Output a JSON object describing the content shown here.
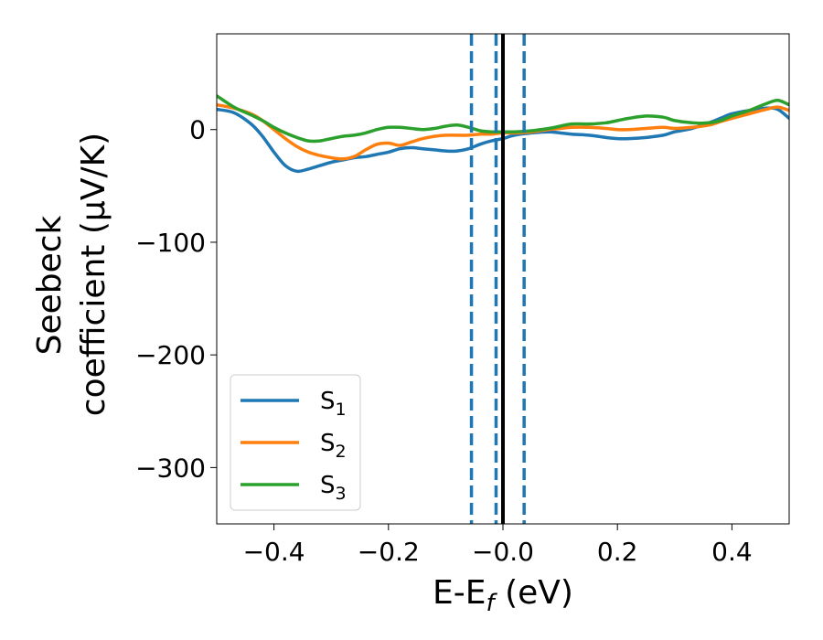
{
  "chart_data": {
    "type": "line",
    "title": "",
    "xlabel": "E-E",
    "xlabel_sub": "f",
    "xlabel_unit": " (eV)",
    "ylabel_line1": "Seebeck",
    "ylabel_line2": "coefficient  (μV/K)",
    "xlim": [
      -0.5,
      0.5
    ],
    "ylim": [
      -350,
      85
    ],
    "xticks": [
      -0.4,
      -0.2,
      0.0,
      0.2,
      0.4
    ],
    "xtick_labels": [
      "−0.4",
      "−0.2",
      "−0.0",
      "0.2",
      "0.4"
    ],
    "yticks": [
      0,
      -100,
      -200,
      -300
    ],
    "ytick_labels": [
      "0",
      "−100",
      "−200",
      "−300"
    ],
    "grid": false,
    "legend_position": "lower-left",
    "series": [
      {
        "name": "S",
        "subscript": "1",
        "color": "#1f77b4",
        "x": [
          -0.5,
          -0.47,
          -0.44,
          -0.42,
          -0.4,
          -0.38,
          -0.36,
          -0.34,
          -0.32,
          -0.3,
          -0.28,
          -0.26,
          -0.24,
          -0.22,
          -0.2,
          -0.18,
          -0.16,
          -0.14,
          -0.12,
          -0.1,
          -0.08,
          -0.06,
          -0.04,
          -0.02,
          0.0,
          0.02,
          0.05,
          0.08,
          0.1,
          0.12,
          0.15,
          0.18,
          0.2,
          0.22,
          0.25,
          0.28,
          0.3,
          0.33,
          0.36,
          0.38,
          0.4,
          0.43,
          0.46,
          0.48,
          0.5
        ],
        "y": [
          18,
          15,
          5,
          -6,
          -20,
          -32,
          -37,
          -35,
          -32,
          -29,
          -27,
          -25,
          -24,
          -22,
          -20,
          -17,
          -16,
          -17,
          -18,
          -19,
          -19,
          -17,
          -13,
          -10,
          -8,
          -5,
          -3,
          -2,
          -3,
          -4,
          -5,
          -7,
          -8,
          -8,
          -7,
          -5,
          -2,
          1,
          6,
          10,
          14,
          17,
          19,
          18,
          10
        ]
      },
      {
        "name": "S",
        "subscript": "2",
        "color": "#ff7f0e",
        "x": [
          -0.5,
          -0.47,
          -0.44,
          -0.42,
          -0.4,
          -0.38,
          -0.36,
          -0.34,
          -0.32,
          -0.3,
          -0.28,
          -0.26,
          -0.24,
          -0.22,
          -0.2,
          -0.18,
          -0.16,
          -0.14,
          -0.12,
          -0.1,
          -0.08,
          -0.06,
          -0.04,
          -0.02,
          0.0,
          0.02,
          0.05,
          0.08,
          0.1,
          0.12,
          0.15,
          0.18,
          0.2,
          0.22,
          0.25,
          0.28,
          0.3,
          0.33,
          0.36,
          0.38,
          0.4,
          0.43,
          0.46,
          0.48,
          0.5
        ],
        "y": [
          22,
          19,
          14,
          8,
          0,
          -8,
          -15,
          -20,
          -23,
          -25,
          -26,
          -24,
          -18,
          -13,
          -12,
          -14,
          -11,
          -8,
          -6,
          -5,
          -5,
          -5,
          -4,
          -4,
          -3,
          -3,
          -2,
          0,
          1,
          2,
          2,
          1,
          0,
          0,
          1,
          2,
          1,
          2,
          4,
          7,
          10,
          14,
          18,
          20,
          17
        ]
      },
      {
        "name": "S",
        "subscript": "3",
        "color": "#2ca02c",
        "x": [
          -0.5,
          -0.47,
          -0.44,
          -0.42,
          -0.4,
          -0.38,
          -0.36,
          -0.34,
          -0.32,
          -0.3,
          -0.28,
          -0.26,
          -0.24,
          -0.22,
          -0.2,
          -0.18,
          -0.16,
          -0.14,
          -0.12,
          -0.1,
          -0.08,
          -0.06,
          -0.04,
          -0.02,
          0.0,
          0.02,
          0.05,
          0.08,
          0.1,
          0.12,
          0.15,
          0.18,
          0.2,
          0.22,
          0.25,
          0.28,
          0.3,
          0.33,
          0.36,
          0.38,
          0.4,
          0.43,
          0.46,
          0.48,
          0.5
        ],
        "y": [
          30,
          20,
          13,
          8,
          2,
          -3,
          -7,
          -10,
          -10,
          -8,
          -6,
          -5,
          -3,
          0,
          2,
          2,
          1,
          0,
          1,
          3,
          4,
          2,
          -1,
          -2,
          -2,
          -2,
          -1,
          1,
          3,
          5,
          5,
          6,
          8,
          10,
          12,
          11,
          8,
          6,
          6,
          8,
          12,
          17,
          23,
          26,
          22
        ]
      }
    ],
    "vlines": [
      {
        "x": -0.055,
        "style": "dashed",
        "color": "#1f77b4"
      },
      {
        "x": -0.012,
        "style": "dashed",
        "color": "#1f77b4"
      },
      {
        "x": 0.037,
        "style": "dashed",
        "color": "#1f77b4"
      },
      {
        "x": 0.0,
        "style": "solid",
        "color": "#000000"
      }
    ]
  }
}
